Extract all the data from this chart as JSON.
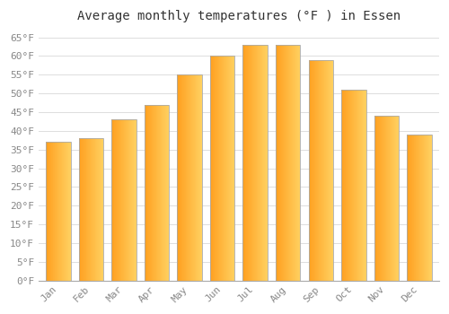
{
  "months": [
    "Jan",
    "Feb",
    "Mar",
    "Apr",
    "May",
    "Jun",
    "Jul",
    "Aug",
    "Sep",
    "Oct",
    "Nov",
    "Dec"
  ],
  "temperatures": [
    37,
    38,
    43,
    47,
    55,
    60,
    63,
    63,
    59,
    51,
    44,
    39
  ],
  "bar_color_left": "#FFA020",
  "bar_color_right": "#FFD060",
  "bar_edge_color": "#AAAAAA",
  "background_color": "#FFFFFF",
  "grid_color": "#DDDDDD",
  "title": "Average monthly temperatures (°F ) in Essen",
  "title_fontsize": 10,
  "tick_fontsize": 8,
  "ytick_step": 5,
  "ymin": 0,
  "ymax": 67,
  "figsize": [
    5.0,
    3.5
  ],
  "dpi": 100
}
